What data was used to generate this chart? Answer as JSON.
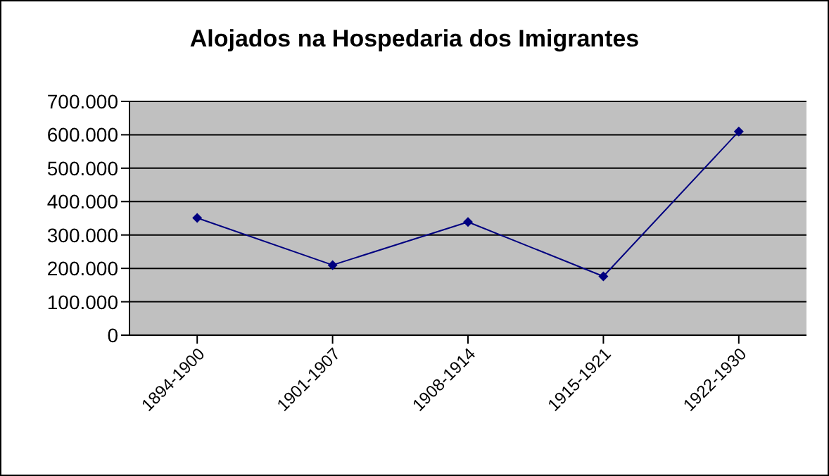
{
  "chart_data": {
    "type": "line",
    "title": "Alojados na Hospedaria dos Imigrantes",
    "categories": [
      "1894-1900",
      "1901-1907",
      "1908-1914",
      "1915-1921",
      "1922-1930"
    ],
    "series": [
      {
        "color": "#000080",
        "values": [
          351000,
          210000,
          339000,
          176000,
          610000
        ]
      }
    ],
    "ylim": [
      0,
      700000
    ],
    "yticks": [
      {
        "value": 0,
        "label": "0"
      },
      {
        "value": 100000,
        "label": "100.000"
      },
      {
        "value": 200000,
        "label": "200.000"
      },
      {
        "value": 300000,
        "label": "300.000"
      },
      {
        "value": 400000,
        "label": "400.000"
      },
      {
        "value": 500000,
        "label": "500.000"
      },
      {
        "value": 600000,
        "label": "600.000"
      },
      {
        "value": 700000,
        "label": "700.000"
      }
    ],
    "grid": "y",
    "legend": false,
    "marker": "diamond",
    "line_style": "solid"
  }
}
